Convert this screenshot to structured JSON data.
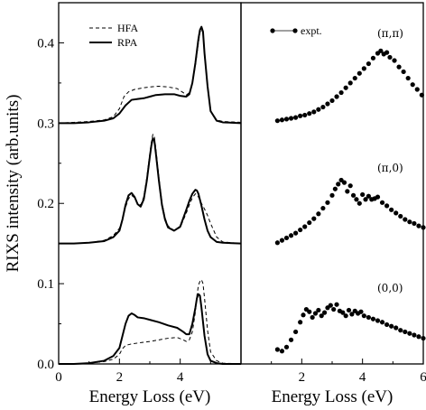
{
  "chart_data": [
    {
      "type": "line",
      "panel": "left",
      "xlabel": "Energy Loss (eV)",
      "ylabel": "RIXS intensity (arb.units)",
      "xlim": [
        0,
        6
      ],
      "ylim": [
        0,
        0.45
      ],
      "xticks": [
        0,
        2,
        4
      ],
      "yticks": [
        0.0,
        0.1,
        0.2,
        0.3,
        0.4
      ],
      "legend": {
        "placement": "top-left"
      },
      "series": [
        {
          "name": "HFA",
          "style": "dashed",
          "group": "(π,π)",
          "x": [
            0,
            0.5,
            1.0,
            1.5,
            1.8,
            2.0,
            2.15,
            2.3,
            2.5,
            2.8,
            3.0,
            3.3,
            3.6,
            3.9,
            4.1,
            4.2,
            4.3,
            4.4,
            4.5,
            4.6,
            4.65,
            4.7,
            4.75,
            4.8,
            4.9,
            5.0,
            5.2,
            5.4,
            6.0
          ],
          "y": [
            0.3,
            0.301,
            0.302,
            0.304,
            0.308,
            0.318,
            0.333,
            0.339,
            0.342,
            0.344,
            0.345,
            0.346,
            0.345,
            0.343,
            0.338,
            0.335,
            0.338,
            0.35,
            0.372,
            0.4,
            0.413,
            0.417,
            0.412,
            0.385,
            0.345,
            0.315,
            0.304,
            0.302,
            0.301
          ]
        },
        {
          "name": "RPA",
          "style": "solid",
          "group": "(π,π)",
          "x": [
            0,
            0.5,
            1.0,
            1.5,
            1.8,
            2.0,
            2.2,
            2.4,
            2.6,
            2.8,
            3.0,
            3.2,
            3.5,
            3.8,
            4.0,
            4.2,
            4.3,
            4.4,
            4.5,
            4.6,
            4.65,
            4.7,
            4.75,
            4.8,
            4.9,
            5.0,
            5.2,
            5.4,
            6.0
          ],
          "y": [
            0.3,
            0.3,
            0.301,
            0.303,
            0.306,
            0.312,
            0.322,
            0.329,
            0.33,
            0.331,
            0.333,
            0.335,
            0.336,
            0.336,
            0.334,
            0.333,
            0.336,
            0.35,
            0.375,
            0.405,
            0.416,
            0.42,
            0.414,
            0.387,
            0.346,
            0.315,
            0.303,
            0.301,
            0.3
          ]
        },
        {
          "name": "HFA",
          "style": "dashed",
          "group": "(π,0)",
          "x": [
            0,
            0.5,
            1.0,
            1.5,
            1.8,
            2.0,
            2.1,
            2.2,
            2.3,
            2.4,
            2.5,
            2.6,
            2.7,
            2.8,
            2.9,
            3.0,
            3.05,
            3.1,
            3.15,
            3.2,
            3.3,
            3.4,
            3.5,
            3.6,
            3.8,
            4.0,
            4.2,
            4.3,
            4.4,
            4.5,
            4.6,
            4.7,
            4.8,
            4.9,
            5.0,
            5.2,
            5.4,
            6.0
          ],
          "y": [
            0.15,
            0.15,
            0.151,
            0.154,
            0.16,
            0.169,
            0.18,
            0.195,
            0.206,
            0.21,
            0.207,
            0.2,
            0.198,
            0.208,
            0.232,
            0.262,
            0.276,
            0.286,
            0.283,
            0.268,
            0.232,
            0.201,
            0.182,
            0.172,
            0.166,
            0.17,
            0.188,
            0.198,
            0.207,
            0.212,
            0.208,
            0.2,
            0.193,
            0.185,
            0.175,
            0.158,
            0.152,
            0.15
          ]
        },
        {
          "name": "RPA",
          "style": "solid",
          "group": "(π,0)",
          "x": [
            0,
            0.5,
            1.0,
            1.5,
            1.8,
            2.0,
            2.1,
            2.2,
            2.3,
            2.4,
            2.5,
            2.6,
            2.7,
            2.8,
            2.9,
            3.0,
            3.05,
            3.1,
            3.15,
            3.2,
            3.3,
            3.4,
            3.5,
            3.6,
            3.8,
            4.0,
            4.2,
            4.3,
            4.4,
            4.5,
            4.55,
            4.6,
            4.7,
            4.8,
            4.9,
            5.0,
            5.2,
            5.4,
            6.0
          ],
          "y": [
            0.15,
            0.15,
            0.151,
            0.153,
            0.158,
            0.166,
            0.18,
            0.198,
            0.21,
            0.213,
            0.208,
            0.199,
            0.196,
            0.205,
            0.228,
            0.258,
            0.272,
            0.281,
            0.278,
            0.262,
            0.228,
            0.198,
            0.18,
            0.17,
            0.166,
            0.171,
            0.192,
            0.203,
            0.212,
            0.217,
            0.216,
            0.212,
            0.197,
            0.18,
            0.166,
            0.158,
            0.152,
            0.151,
            0.15
          ]
        },
        {
          "name": "HFA",
          "style": "dashed",
          "group": "(0,0)",
          "x": [
            0,
            0.5,
            1.0,
            1.5,
            1.8,
            2.0,
            2.1,
            2.2,
            2.4,
            2.6,
            2.8,
            3.0,
            3.3,
            3.6,
            3.9,
            4.1,
            4.2,
            4.3,
            4.4,
            4.5,
            4.55,
            4.6,
            4.65,
            4.7,
            4.75,
            4.8,
            4.9,
            5.0,
            5.2,
            5.4,
            6.0
          ],
          "y": [
            0.0,
            0.0,
            0.001,
            0.003,
            0.006,
            0.012,
            0.019,
            0.023,
            0.025,
            0.026,
            0.027,
            0.028,
            0.03,
            0.032,
            0.033,
            0.03,
            0.028,
            0.03,
            0.04,
            0.065,
            0.085,
            0.098,
            0.103,
            0.105,
            0.1,
            0.082,
            0.042,
            0.015,
            0.004,
            0.001,
            0.0
          ]
        },
        {
          "name": "RPA",
          "style": "solid",
          "group": "(0,0)",
          "x": [
            0,
            0.5,
            1.0,
            1.5,
            1.8,
            2.0,
            2.1,
            2.2,
            2.3,
            2.4,
            2.5,
            2.6,
            2.8,
            3.0,
            3.3,
            3.6,
            3.9,
            4.1,
            4.2,
            4.3,
            4.4,
            4.5,
            4.55,
            4.6,
            4.65,
            4.7,
            4.8,
            4.9,
            5.0,
            5.2,
            5.4,
            6.0
          ],
          "y": [
            0.0,
            0.0,
            0.001,
            0.004,
            0.01,
            0.02,
            0.035,
            0.05,
            0.06,
            0.063,
            0.061,
            0.058,
            0.057,
            0.055,
            0.052,
            0.048,
            0.045,
            0.04,
            0.037,
            0.037,
            0.05,
            0.07,
            0.082,
            0.087,
            0.085,
            0.07,
            0.035,
            0.012,
            0.004,
            0.001,
            0.0,
            0.0
          ]
        }
      ]
    },
    {
      "type": "scatter",
      "panel": "right",
      "xlabel": "Energy Loss (eV)",
      "xlim": [
        0,
        6
      ],
      "ylim": [
        0,
        0.45
      ],
      "xticks": [
        2,
        4,
        6
      ],
      "legend": {
        "placement": "top-left"
      },
      "annotations": [
        "(π,π)",
        "(π,0)",
        "(0,0)"
      ],
      "series": [
        {
          "name": "expt.",
          "group": "(π,π)",
          "x": [
            1.2,
            1.35,
            1.5,
            1.65,
            1.8,
            1.95,
            2.1,
            2.25,
            2.4,
            2.55,
            2.7,
            2.85,
            3.0,
            3.15,
            3.3,
            3.45,
            3.6,
            3.75,
            3.9,
            4.05,
            4.2,
            4.35,
            4.5,
            4.6,
            4.7,
            4.8,
            4.9,
            5.05,
            5.2,
            5.35,
            5.5,
            5.65,
            5.8,
            5.95
          ],
          "y": [
            0.303,
            0.304,
            0.305,
            0.306,
            0.307,
            0.309,
            0.31,
            0.312,
            0.314,
            0.317,
            0.32,
            0.324,
            0.328,
            0.333,
            0.338,
            0.344,
            0.35,
            0.356,
            0.362,
            0.368,
            0.374,
            0.381,
            0.387,
            0.39,
            0.386,
            0.388,
            0.382,
            0.378,
            0.37,
            0.364,
            0.356,
            0.348,
            0.342,
            0.335
          ]
        },
        {
          "name": "expt.",
          "group": "(π,0)",
          "x": [
            1.2,
            1.35,
            1.5,
            1.65,
            1.8,
            1.95,
            2.1,
            2.25,
            2.4,
            2.55,
            2.7,
            2.85,
            3.0,
            3.1,
            3.2,
            3.3,
            3.4,
            3.5,
            3.6,
            3.7,
            3.8,
            3.9,
            4.0,
            4.1,
            4.2,
            4.3,
            4.4,
            4.5,
            4.65,
            4.8,
            4.95,
            5.1,
            5.25,
            5.4,
            5.55,
            5.7,
            5.85,
            6.0
          ],
          "y": [
            0.151,
            0.154,
            0.157,
            0.16,
            0.163,
            0.167,
            0.171,
            0.176,
            0.181,
            0.187,
            0.194,
            0.201,
            0.21,
            0.218,
            0.224,
            0.229,
            0.226,
            0.215,
            0.222,
            0.21,
            0.205,
            0.2,
            0.211,
            0.205,
            0.209,
            0.205,
            0.206,
            0.208,
            0.201,
            0.197,
            0.192,
            0.188,
            0.184,
            0.18,
            0.177,
            0.175,
            0.172,
            0.17
          ]
        },
        {
          "name": "expt.",
          "group": "(0,0)",
          "x": [
            1.2,
            1.35,
            1.5,
            1.65,
            1.8,
            1.95,
            2.05,
            2.15,
            2.25,
            2.35,
            2.45,
            2.55,
            2.65,
            2.75,
            2.85,
            2.95,
            3.05,
            3.15,
            3.25,
            3.35,
            3.45,
            3.55,
            3.65,
            3.75,
            3.85,
            3.95,
            4.05,
            4.2,
            4.35,
            4.5,
            4.65,
            4.8,
            4.95,
            5.1,
            5.25,
            5.4,
            5.55,
            5.7,
            5.85,
            6.0
          ],
          "y": [
            0.018,
            0.016,
            0.021,
            0.03,
            0.04,
            0.052,
            0.061,
            0.068,
            0.065,
            0.058,
            0.063,
            0.067,
            0.06,
            0.064,
            0.07,
            0.073,
            0.068,
            0.074,
            0.066,
            0.064,
            0.06,
            0.067,
            0.062,
            0.066,
            0.063,
            0.065,
            0.06,
            0.058,
            0.056,
            0.054,
            0.052,
            0.049,
            0.047,
            0.045,
            0.042,
            0.04,
            0.038,
            0.036,
            0.034,
            0.032
          ]
        }
      ]
    }
  ]
}
